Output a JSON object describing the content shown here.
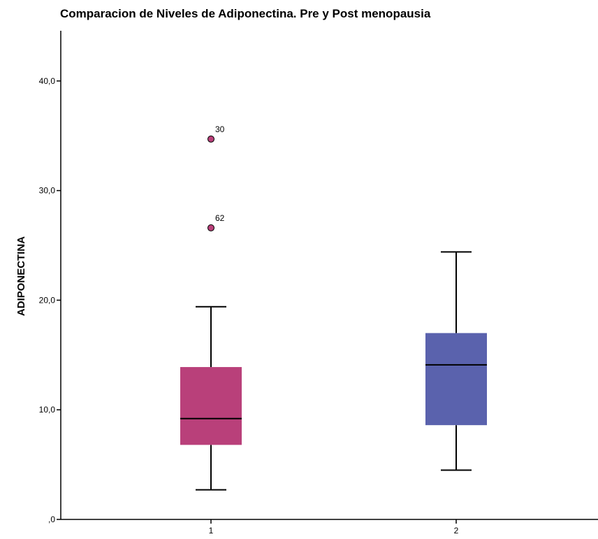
{
  "chart_data": {
    "type": "box",
    "title": "Comparacion de Niveles de Adiponectina. Pre y Post menopausia",
    "xlabel": "",
    "ylabel": "ADIPONECTINA",
    "ylim": [
      0,
      44
    ],
    "yticks": [
      {
        "value": 0,
        "label": ",0"
      },
      {
        "value": 10,
        "label": "10,0"
      },
      {
        "value": 20,
        "label": "20,0"
      },
      {
        "value": 30,
        "label": "30,0"
      },
      {
        "value": 40,
        "label": "40,0"
      }
    ],
    "categories": [
      "1",
      "2"
    ],
    "boxes": [
      {
        "category": "1",
        "min": 2.7,
        "q1": 6.8,
        "median": 9.2,
        "q3": 13.9,
        "max": 19.4,
        "color": "#b9407a",
        "outliers": [
          {
            "value": 34.7,
            "label": "30"
          },
          {
            "value": 26.6,
            "label": "62"
          }
        ]
      },
      {
        "category": "2",
        "min": 4.5,
        "q1": 8.6,
        "median": 14.1,
        "q3": 17.0,
        "max": 24.4,
        "color": "#5a62ad",
        "outliers": []
      }
    ],
    "grid": false,
    "legend": "none"
  }
}
